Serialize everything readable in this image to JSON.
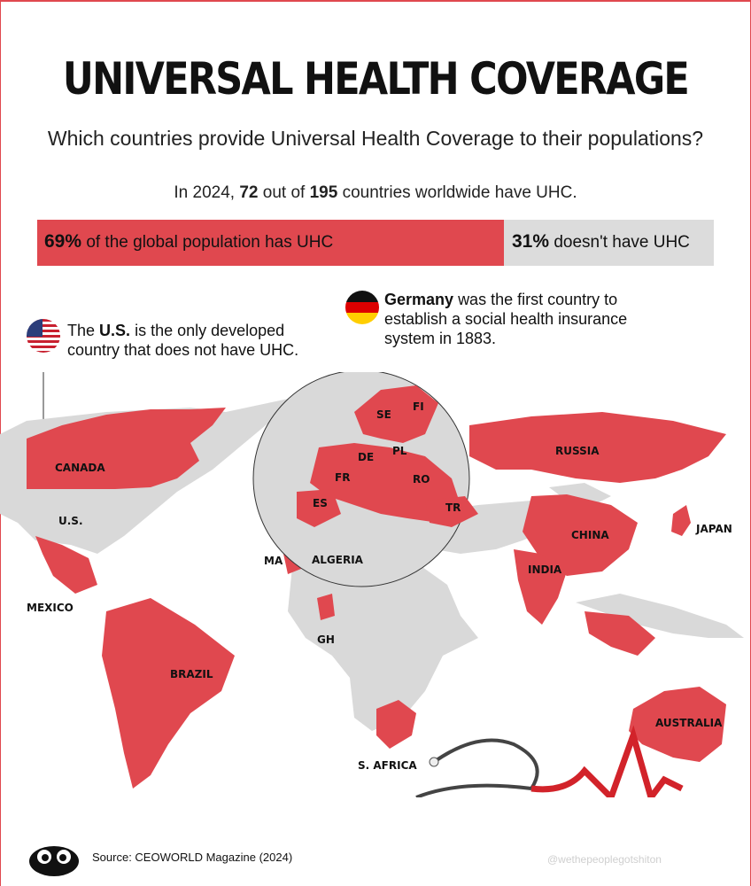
{
  "header": {
    "title": "UNIVERSAL HEALTH COVERAGE",
    "subtitle": "Which countries provide Universal Health Coverage to their populations?"
  },
  "stat_line": {
    "prefix": "In 2024,",
    "count": "72",
    "middle": "out of",
    "total": "195",
    "suffix": "countries worldwide have UHC."
  },
  "population_bar": {
    "with_uhc_fraction": 0.69,
    "with_pct": "69%",
    "with_text": "of the global population has UHC",
    "without_pct": "31%",
    "without_text": "doesn't have UHC"
  },
  "notes": {
    "us_pre": "The",
    "us_bold": "U.S.",
    "us_post": "is the only developed country that does not have UHC.",
    "de_bold": "Germany",
    "de_post": "was the first country to establish a social health insurance system in 1883."
  },
  "map_labels": {
    "canada": "CANADA",
    "us": "U.S.",
    "mexico": "MEXICO",
    "brazil": "BRAZIL",
    "ma": "MA",
    "algeria": "ALGERIA",
    "gh": "GH",
    "s_africa": "S. AFRICA",
    "russia": "RUSSIA",
    "china": "CHINA",
    "india": "INDIA",
    "japan": "JAPAN",
    "australia": "AUSTRALIA",
    "se": "SE",
    "fi": "FI",
    "de": "DE",
    "pl": "PL",
    "fr": "FR",
    "ro": "RO",
    "es": "ES",
    "tr": "TR"
  },
  "colors": {
    "uhc": "#e0484f",
    "no_uhc": "#d9d9d9",
    "text": "#111111"
  },
  "icons": [
    "us-flag-icon",
    "germany-flag-icon",
    "stethoscope-icon",
    "brand-logo-icon"
  ],
  "footer": {
    "source": "Source: CEOWORLD Magazine (2024)",
    "watermark": "@wethepeoplegotshiton"
  }
}
